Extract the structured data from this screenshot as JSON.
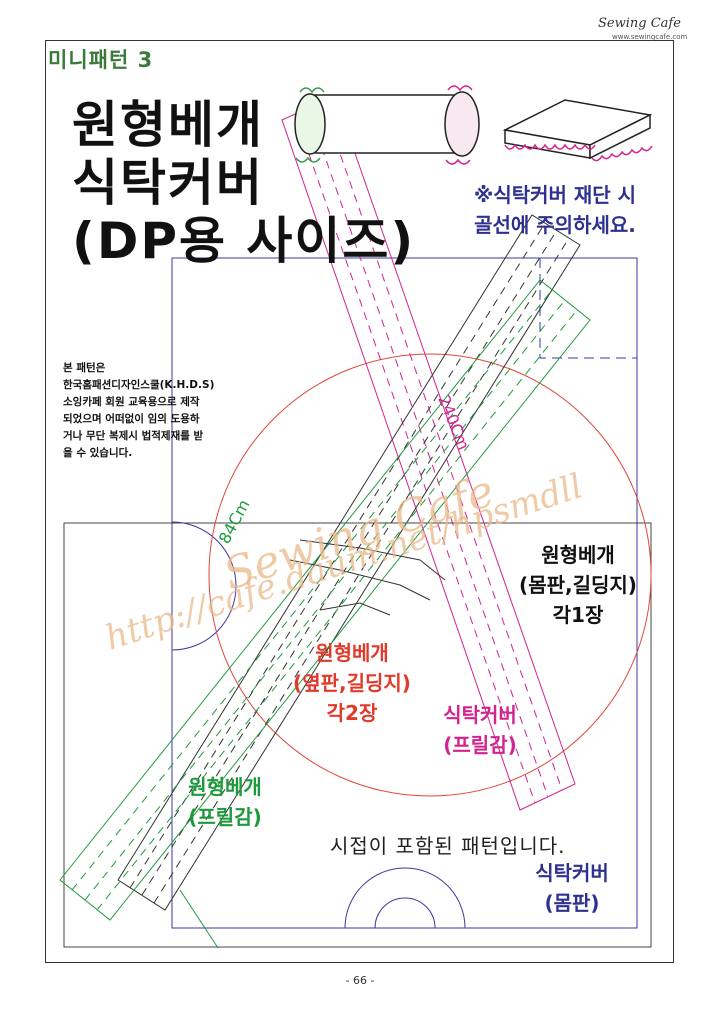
{
  "brand": {
    "name": "Sewing Cafe",
    "url": "www.sewingcafe.com"
  },
  "header": {
    "series_title": "미니패턴 3"
  },
  "title": {
    "line1": "원형베개",
    "line2": "식탁커버",
    "line3": "(DP용 사이즈)"
  },
  "notice": {
    "line1": "※식탁커버 재단 시",
    "line2": "골선에 주의하세요."
  },
  "copyright": {
    "lines": [
      "본 패턴은",
      "한국홈패션디자인스쿨(K.H.D.S)",
      "소잉카페 회원 교육용으로 제작",
      "되었으며 어떠없이 임의 도용하",
      "거나 무단 복제시 법적제재를 받",
      "을 수 있습니다."
    ]
  },
  "watermark": {
    "script": "Sewing Cafe",
    "url": "http://cafe.daum.net/hpsmdll"
  },
  "dimensions": {
    "long": "240Cm",
    "short": "84Cm"
  },
  "pieces": {
    "round_pillow_body": {
      "line1": "원형베개",
      "line2": "(몸판,길딩지)",
      "line3": "각1장"
    },
    "round_pillow_side": {
      "line1": "원형베개",
      "line2": "(옆판,길딩지)",
      "line3": "각2장"
    },
    "table_cover_frill": {
      "line1": "식탁커버",
      "line2": "(프릴감)"
    },
    "round_pillow_frill": {
      "line1": "원형베개",
      "line2": "(프릴감)"
    },
    "table_cover_body": {
      "line1": "식탁커버",
      "line2": "(몸판)"
    }
  },
  "seam_note": "시접이 포함된 패턴입니다.",
  "page_number": "- 66 -",
  "colors": {
    "title_green": "#3c7a3c",
    "note_blue": "#2f3190",
    "pillow_side_red": "#e23a2a",
    "table_frill_magenta": "#d2238f",
    "pillow_frill_green": "#1e9a3c",
    "table_body_blue": "#2f3190",
    "watermark_orange": "#e9b98a"
  }
}
